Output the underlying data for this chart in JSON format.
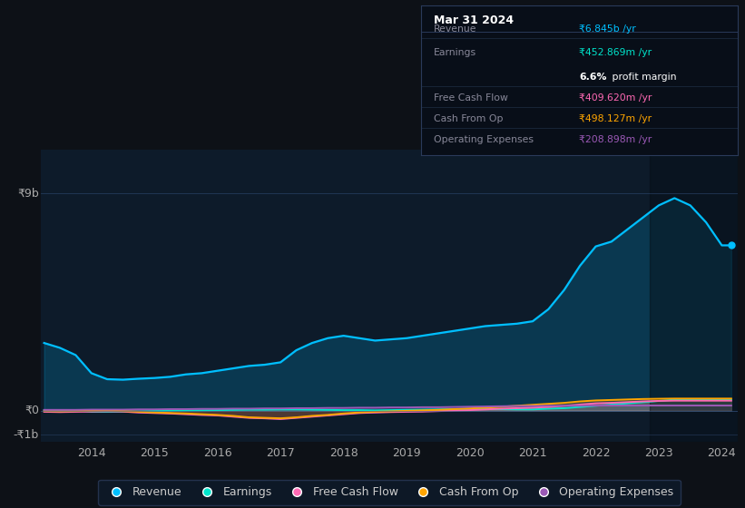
{
  "bg_color": "#0d1117",
  "plot_bg_color": "#0d1b2a",
  "title_date": "Mar 31 2024",
  "years": [
    2013.25,
    2013.5,
    2013.75,
    2014.0,
    2014.25,
    2014.5,
    2014.75,
    2015.0,
    2015.25,
    2015.5,
    2015.75,
    2016.0,
    2016.25,
    2016.5,
    2016.75,
    2017.0,
    2017.25,
    2017.5,
    2017.75,
    2018.0,
    2018.25,
    2018.5,
    2018.75,
    2019.0,
    2019.25,
    2019.5,
    2019.75,
    2020.0,
    2020.25,
    2020.5,
    2020.75,
    2021.0,
    2021.25,
    2021.5,
    2021.75,
    2022.0,
    2022.25,
    2022.5,
    2022.75,
    2023.0,
    2023.25,
    2023.5,
    2023.75,
    2024.0,
    2024.15
  ],
  "revenue": [
    2.8,
    2.6,
    2.3,
    1.55,
    1.3,
    1.28,
    1.32,
    1.35,
    1.4,
    1.5,
    1.55,
    1.65,
    1.75,
    1.85,
    1.9,
    2.0,
    2.5,
    2.8,
    3.0,
    3.1,
    3.0,
    2.9,
    2.95,
    3.0,
    3.1,
    3.2,
    3.3,
    3.4,
    3.5,
    3.55,
    3.6,
    3.7,
    4.2,
    5.0,
    6.0,
    6.8,
    7.0,
    7.5,
    8.0,
    8.5,
    8.8,
    8.5,
    7.8,
    6.845,
    6.845
  ],
  "earnings": [
    0.02,
    0.02,
    0.01,
    -0.05,
    -0.05,
    -0.04,
    -0.04,
    -0.02,
    -0.01,
    0.0,
    0.01,
    0.02,
    0.03,
    0.04,
    0.04,
    0.05,
    0.05,
    0.04,
    0.03,
    0.02,
    0.02,
    0.01,
    0.02,
    0.03,
    0.04,
    0.05,
    0.06,
    0.07,
    0.07,
    0.06,
    0.05,
    0.05,
    0.08,
    0.1,
    0.15,
    0.2,
    0.25,
    0.3,
    0.35,
    0.4,
    0.45,
    0.453,
    0.45,
    0.453,
    0.453
  ],
  "free_cash_flow": [
    -0.05,
    -0.06,
    -0.05,
    -0.04,
    -0.03,
    -0.04,
    -0.08,
    -0.1,
    -0.12,
    -0.15,
    -0.18,
    -0.2,
    -0.25,
    -0.3,
    -0.32,
    -0.35,
    -0.3,
    -0.25,
    -0.2,
    -0.15,
    -0.1,
    -0.08,
    -0.06,
    -0.05,
    -0.04,
    -0.02,
    0.0,
    0.02,
    0.05,
    0.08,
    0.1,
    0.12,
    0.15,
    0.2,
    0.25,
    0.3,
    0.32,
    0.35,
    0.38,
    0.4,
    0.41,
    0.41,
    0.41,
    0.41,
    0.41
  ],
  "cash_from_op": [
    -0.02,
    -0.03,
    -0.02,
    -0.01,
    0.0,
    -0.02,
    -0.05,
    -0.08,
    -0.1,
    -0.12,
    -0.15,
    -0.18,
    -0.22,
    -0.28,
    -0.3,
    -0.32,
    -0.28,
    -0.22,
    -0.18,
    -0.12,
    -0.08,
    -0.05,
    -0.03,
    -0.01,
    0.01,
    0.03,
    0.06,
    0.09,
    0.12,
    0.16,
    0.2,
    0.24,
    0.28,
    0.32,
    0.38,
    0.42,
    0.44,
    0.46,
    0.48,
    0.49,
    0.498,
    0.498,
    0.498,
    0.498,
    0.498
  ],
  "operating_expenses": [
    0.03,
    0.03,
    0.03,
    0.04,
    0.04,
    0.04,
    0.05,
    0.05,
    0.06,
    0.06,
    0.07,
    0.07,
    0.08,
    0.08,
    0.09,
    0.09,
    0.1,
    0.1,
    0.11,
    0.11,
    0.12,
    0.12,
    0.13,
    0.13,
    0.14,
    0.14,
    0.15,
    0.16,
    0.17,
    0.18,
    0.19,
    0.19,
    0.2,
    0.2,
    0.2,
    0.21,
    0.21,
    0.21,
    0.21,
    0.21,
    0.21,
    0.21,
    0.21,
    0.209,
    0.209
  ],
  "revenue_color": "#00bfff",
  "earnings_color": "#00e5cc",
  "free_cash_flow_color": "#ff69b4",
  "cash_from_op_color": "#ffa500",
  "operating_expenses_color": "#9b59b6",
  "ylim_min": -1.3,
  "ylim_max": 10.8,
  "xticks": [
    2014,
    2015,
    2016,
    2017,
    2018,
    2019,
    2020,
    2021,
    2022,
    2023,
    2024
  ],
  "legend_items": [
    "Revenue",
    "Earnings",
    "Free Cash Flow",
    "Cash From Op",
    "Operating Expenses"
  ],
  "legend_colors": [
    "#00bfff",
    "#00e5cc",
    "#ff69b4",
    "#ffa500",
    "#9b59b6"
  ],
  "tooltip_rows": [
    {
      "label": "Revenue",
      "value": "₹6.845b /yr",
      "color": "#00bfff",
      "separator": true
    },
    {
      "label": "Earnings",
      "value": "₹452.869m /yr",
      "color": "#00e5cc",
      "separator": false
    },
    {
      "label": "",
      "value": "6.6% profit margin",
      "color": "mixed",
      "separator": true
    },
    {
      "label": "Free Cash Flow",
      "value": "₹409.620m /yr",
      "color": "#ff69b4",
      "separator": true
    },
    {
      "label": "Cash From Op",
      "value": "₹498.127m /yr",
      "color": "#ffa500",
      "separator": true
    },
    {
      "label": "Operating Expenses",
      "value": "₹208.898m /yr",
      "color": "#9b59b6",
      "separator": false
    }
  ]
}
